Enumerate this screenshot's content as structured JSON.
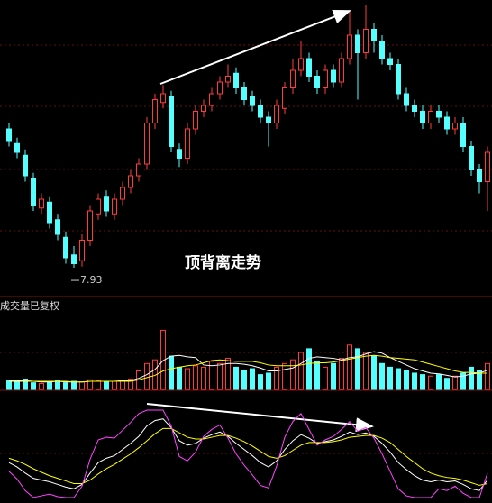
{
  "chart_data": [
    {
      "type": "candlestick",
      "annotation": "顶背离走势",
      "up_color": "#ff3c3c",
      "down_color": "#54ffff",
      "ylim": [
        7.5,
        12.5
      ],
      "open": [
        10.3,
        10.05,
        9.85,
        9.45,
        8.95,
        9.05,
        8.75,
        8.45,
        8.15,
        8.05,
        8.4,
        8.85,
        9.15,
        8.85,
        9.1,
        9.3,
        9.5,
        9.7,
        10.4,
        10.75,
        10.85,
        9.95,
        9.8,
        10.3,
        10.6,
        10.7,
        10.9,
        11.1,
        11.25,
        11.0,
        10.85,
        10.7,
        10.5,
        10.4,
        10.65,
        11.0,
        11.3,
        11.5,
        11.2,
        11.0,
        11.3,
        11.1,
        11.5,
        11.9,
        11.6,
        12.0,
        11.8,
        11.5,
        11.4,
        10.9,
        10.7,
        10.6,
        10.4,
        10.6,
        10.5,
        10.3,
        10.4,
        10.0,
        9.6,
        9.4
      ],
      "high": [
        10.4,
        10.15,
        9.95,
        9.55,
        9.2,
        9.15,
        8.85,
        8.55,
        8.3,
        8.5,
        9.0,
        9.2,
        9.25,
        9.2,
        9.4,
        9.6,
        9.8,
        10.5,
        10.9,
        11.05,
        10.95,
        10.05,
        10.4,
        10.7,
        10.8,
        11.0,
        11.2,
        11.4,
        11.35,
        11.1,
        10.95,
        10.8,
        10.6,
        10.8,
        11.1,
        11.5,
        11.8,
        11.6,
        11.3,
        11.4,
        11.4,
        11.6,
        12.3,
        12.0,
        12.42,
        12.1,
        11.9,
        11.6,
        11.5,
        11.0,
        10.8,
        10.7,
        10.7,
        10.7,
        10.6,
        10.5,
        10.5,
        10.1,
        9.7,
        10.0
      ],
      "low": [
        10.0,
        9.8,
        9.4,
        8.9,
        8.85,
        8.6,
        8.4,
        8.0,
        7.93,
        7.95,
        8.3,
        8.75,
        8.8,
        8.75,
        9.0,
        9.2,
        9.4,
        9.6,
        10.3,
        10.65,
        9.9,
        9.65,
        9.7,
        10.2,
        10.5,
        10.6,
        10.8,
        11.0,
        10.9,
        10.7,
        10.6,
        10.4,
        10.0,
        10.3,
        10.55,
        10.9,
        11.2,
        11.1,
        10.9,
        10.9,
        11.0,
        11.0,
        11.4,
        10.8,
        11.5,
        11.6,
        11.4,
        11.3,
        10.8,
        10.6,
        10.5,
        10.3,
        10.3,
        10.4,
        10.2,
        10.2,
        9.9,
        9.5,
        9.2,
        8.9
      ],
      "close": [
        10.1,
        9.9,
        9.5,
        9.0,
        9.1,
        8.7,
        8.5,
        8.1,
        8.0,
        8.4,
        8.9,
        9.1,
        8.9,
        9.1,
        9.3,
        9.5,
        9.7,
        10.4,
        10.8,
        10.9,
        10.0,
        9.8,
        10.3,
        10.6,
        10.7,
        10.9,
        11.1,
        11.2,
        11.0,
        10.8,
        10.7,
        10.5,
        10.4,
        10.7,
        11.0,
        11.3,
        11.5,
        11.2,
        11.0,
        11.3,
        11.1,
        11.5,
        11.9,
        11.6,
        12.0,
        11.8,
        11.5,
        11.4,
        10.9,
        10.7,
        10.6,
        10.4,
        10.6,
        10.5,
        10.3,
        10.4,
        10.0,
        9.6,
        9.4,
        9.9
      ]
    },
    {
      "type": "bar",
      "title": "成交量已复权",
      "ylim": [
        0,
        100
      ],
      "values": [
        12,
        10,
        14,
        9,
        8,
        10,
        12,
        9,
        11,
        10,
        13,
        12,
        10,
        11,
        12,
        14,
        25,
        35,
        40,
        80,
        45,
        30,
        28,
        32,
        30,
        38,
        35,
        42,
        30,
        25,
        28,
        20,
        22,
        30,
        35,
        40,
        50,
        55,
        38,
        30,
        35,
        42,
        60,
        55,
        50,
        45,
        35,
        30,
        28,
        25,
        22,
        20,
        18,
        20,
        15,
        18,
        22,
        30,
        25,
        35
      ],
      "series": [
        {
          "color": "#ffffff",
          "values": [
            11,
            11,
            11,
            11,
            10,
            10,
            11,
            10,
            10,
            10,
            11,
            11,
            11,
            11,
            12,
            12,
            15,
            20,
            27,
            39,
            45,
            46,
            44,
            43,
            33,
            32,
            33,
            35,
            35,
            34,
            32,
            29,
            25,
            25,
            27,
            29,
            35,
            42,
            44,
            43,
            42,
            40,
            43,
            44,
            48,
            51,
            49,
            43,
            38,
            33,
            28,
            25,
            22,
            21,
            19,
            17,
            18,
            21,
            22,
            26
          ]
        },
        {
          "color": "#ffff00",
          "values": [
            12,
            12,
            12,
            11,
            11,
            11,
            11,
            11,
            10,
            10,
            11,
            11,
            11,
            11,
            11,
            11,
            13,
            16,
            19,
            25,
            28,
            30,
            32,
            33,
            36,
            39,
            40,
            39,
            38,
            38,
            38,
            36,
            33,
            32,
            32,
            32,
            33,
            35,
            36,
            36,
            37,
            39,
            41,
            43,
            45,
            46,
            45,
            43,
            42,
            41,
            40,
            37,
            34,
            31,
            28,
            25,
            23,
            23,
            22,
            22
          ]
        }
      ]
    },
    {
      "type": "line",
      "ylim": [
        0,
        100
      ],
      "series": [
        {
          "color": "#ffffff",
          "values": [
            40,
            35,
            28,
            22,
            20,
            18,
            15,
            12,
            10,
            15,
            28,
            40,
            45,
            48,
            55,
            62,
            70,
            82,
            88,
            90,
            80,
            65,
            60,
            62,
            68,
            72,
            75,
            70,
            62,
            55,
            48,
            40,
            35,
            42,
            55,
            65,
            72,
            68,
            62,
            64,
            66,
            70,
            75,
            72,
            74,
            70,
            62,
            52,
            40,
            32,
            25,
            20,
            18,
            20,
            18,
            19,
            15,
            10,
            8,
            20
          ]
        },
        {
          "color": "#ffff00",
          "values": [
            45,
            42,
            38,
            33,
            29,
            25,
            22,
            19,
            16,
            16,
            20,
            27,
            33,
            38,
            44,
            50,
            57,
            65,
            73,
            79,
            79,
            74,
            69,
            67,
            67,
            69,
            71,
            71,
            68,
            64,
            59,
            53,
            47,
            45,
            48,
            54,
            60,
            63,
            63,
            63,
            64,
            66,
            69,
            70,
            71,
            71,
            68,
            63,
            55,
            47,
            40,
            33,
            28,
            25,
            23,
            22,
            20,
            17,
            14,
            16
          ]
        },
        {
          "color": "#ff44ff",
          "values": [
            30,
            21,
            8,
            0,
            2,
            4,
            1,
            0,
            0,
            13,
            44,
            66,
            69,
            68,
            77,
            86,
            96,
            100,
            100,
            100,
            82,
            47,
            42,
            52,
            70,
            78,
            83,
            68,
            50,
            37,
            26,
            14,
            11,
            36,
            69,
            87,
            96,
            78,
            60,
            66,
            70,
            78,
            87,
            76,
            80,
            68,
            50,
            30,
            10,
            2,
            0,
            0,
            0,
            10,
            8,
            13,
            5,
            0,
            0,
            28
          ]
        }
      ]
    }
  ]
}
